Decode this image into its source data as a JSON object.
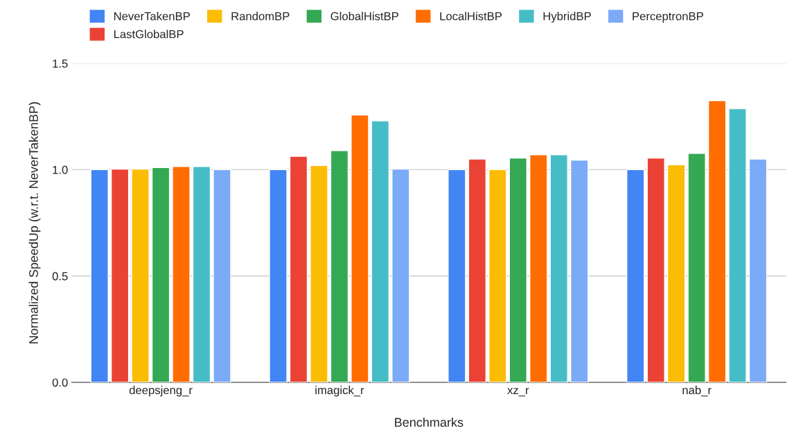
{
  "chart_data": {
    "type": "bar",
    "xlabel": "Benchmarks",
    "ylabel": "Normalized SpeedUp (w.r.t. NeverTakenBP)",
    "categories": [
      "deepsjeng_r",
      "imagick_r",
      "xz_r",
      "nab_r"
    ],
    "series": [
      {
        "name": "NeverTakenBP",
        "color": "#4285f4",
        "values": [
          1.0,
          1.0,
          1.0,
          1.0
        ]
      },
      {
        "name": "LastGlobalBP",
        "color": "#ea4335",
        "values": [
          1.003,
          1.063,
          1.05,
          1.055
        ]
      },
      {
        "name": "RandomBP",
        "color": "#fbbc04",
        "values": [
          1.003,
          1.02,
          1.0,
          1.023
        ]
      },
      {
        "name": "GlobalHistBP",
        "color": "#34a853",
        "values": [
          1.01,
          1.09,
          1.055,
          1.077
        ]
      },
      {
        "name": "LocalHistBP",
        "color": "#ff6d01",
        "values": [
          1.015,
          1.257,
          1.07,
          1.325
        ]
      },
      {
        "name": "HybridBP",
        "color": "#46bdc6",
        "values": [
          1.015,
          1.23,
          1.07,
          1.287
        ]
      },
      {
        "name": "PerceptronBP",
        "color": "#7baaf7",
        "values": [
          1.0,
          1.003,
          1.045,
          1.05
        ]
      }
    ],
    "ylim": [
      0,
      1.5
    ],
    "yticks": [
      {
        "value": 0,
        "label": "0.0"
      },
      {
        "value": 0.5,
        "label": "0.5"
      },
      {
        "value": 1,
        "label": "1.0"
      },
      {
        "value": 1.5,
        "label": "1.5"
      }
    ],
    "grid": "y",
    "legend": "top"
  }
}
